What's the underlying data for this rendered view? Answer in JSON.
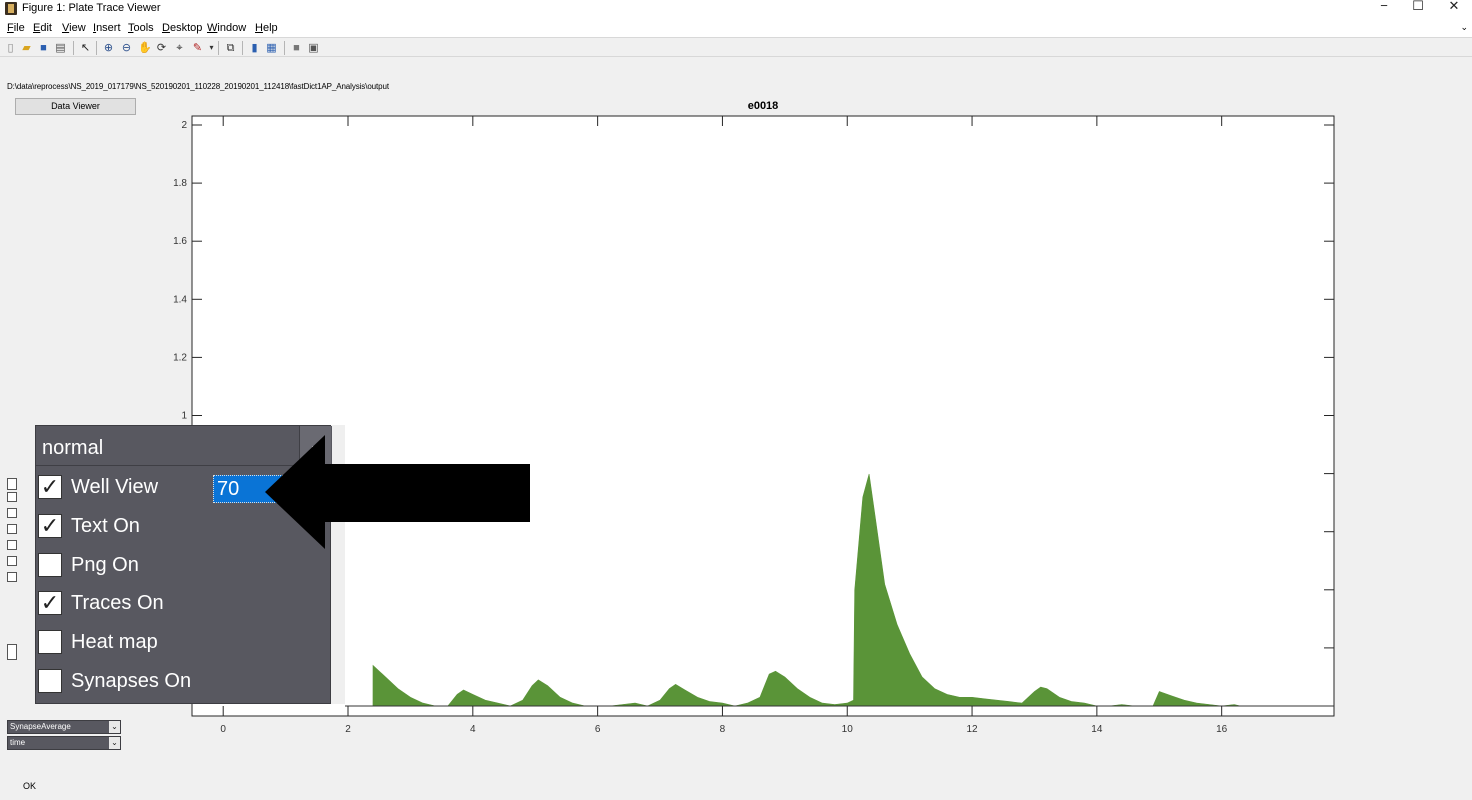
{
  "window": {
    "title": "Figure 1: Plate Trace Viewer",
    "minimize": "−",
    "maximize": "☐",
    "close": "✕"
  },
  "menu": {
    "items": [
      "File",
      "Edit",
      "View",
      "Insert",
      "Tools",
      "Desktop",
      "Window",
      "Help"
    ]
  },
  "toolbar": {
    "icons": [
      "new-figure-icon",
      "open-icon",
      "save-icon",
      "print-icon",
      "pointer-icon",
      "zoom-in-icon",
      "zoom-out-icon",
      "pan-icon",
      "rotate-icon",
      "data-cursor-icon",
      "brush-icon",
      "link-plot-icon",
      "colorbar-icon",
      "legend-icon",
      "hide-plot-tools-icon",
      "show-plot-tools-icon"
    ]
  },
  "path": "D:\\data\\reprocess\\NS_2019_017179\\NS_520190201_110228_20190201_112418\\fastDict1AP_Analysis\\output",
  "data_viewer_label": "Data Viewer",
  "panel": {
    "mode": "normal",
    "spacing_value": "70",
    "options": [
      {
        "label": "Well View",
        "checked": true
      },
      {
        "label": "Text On",
        "checked": true
      },
      {
        "label": "Png On",
        "checked": false
      },
      {
        "label": "Traces On",
        "checked": true
      },
      {
        "label": "Heat map",
        "checked": false
      },
      {
        "label": "Synapses On",
        "checked": false
      }
    ]
  },
  "bottom": {
    "metric_select": "SynapseAverage",
    "axis_select": "time",
    "ok_label": "OK"
  },
  "colors": {
    "trace_fill": "#5a9438",
    "panel_bg": "#585860",
    "input_highlight": "#0a74d6"
  },
  "chart_data": {
    "type": "area",
    "title": "e0018",
    "xlabel": "",
    "ylabel": "",
    "xlim": [
      -0.5,
      17.8
    ],
    "ylim": [
      0,
      2
    ],
    "xticks": [
      0,
      2,
      4,
      6,
      8,
      10,
      12,
      14,
      16
    ],
    "yticks": [
      1,
      1.2,
      1.4,
      1.6,
      1.8,
      2
    ],
    "series": [
      {
        "color": "#5a9438",
        "x": [
          2.4,
          2.6,
          2.8,
          3.0,
          3.2,
          3.4,
          3.6,
          3.75,
          3.85,
          4.0,
          4.2,
          4.4,
          4.6,
          4.8,
          4.95,
          5.05,
          5.2,
          5.4,
          5.6,
          5.8,
          6.0,
          6.2,
          6.4,
          6.6,
          6.8,
          7.0,
          7.15,
          7.25,
          7.4,
          7.6,
          7.8,
          8.0,
          8.2,
          8.4,
          8.6,
          8.75,
          8.85,
          9.0,
          9.2,
          9.4,
          9.6,
          9.8,
          10.0,
          10.1,
          10.12,
          10.25,
          10.35,
          10.45,
          10.6,
          10.8,
          11.0,
          11.2,
          11.4,
          11.6,
          11.8,
          12.0,
          12.2,
          12.4,
          12.6,
          12.8,
          13.0,
          13.1,
          13.2,
          13.4,
          13.6,
          13.8,
          14.0,
          14.2,
          14.4,
          14.6,
          14.9,
          15.0,
          15.2,
          15.4,
          15.6,
          15.8,
          16.0,
          16.2,
          16.3
        ],
        "y": [
          0.14,
          0.1,
          0.06,
          0.03,
          0.01,
          0.0,
          0.0,
          0.04,
          0.055,
          0.04,
          0.02,
          0.01,
          0.0,
          0.02,
          0.07,
          0.09,
          0.07,
          0.03,
          0.01,
          0.0,
          0.0,
          0.0,
          0.005,
          0.01,
          0.0,
          0.02,
          0.06,
          0.075,
          0.055,
          0.03,
          0.015,
          0.01,
          0.0,
          0.01,
          0.03,
          0.11,
          0.12,
          0.1,
          0.06,
          0.03,
          0.01,
          0.005,
          0.01,
          0.02,
          0.4,
          0.72,
          0.8,
          0.65,
          0.42,
          0.28,
          0.18,
          0.1,
          0.06,
          0.04,
          0.03,
          0.03,
          0.025,
          0.02,
          0.015,
          0.01,
          0.05,
          0.065,
          0.06,
          0.03,
          0.015,
          0.01,
          0.0,
          0.0,
          0.005,
          0.0,
          0.0,
          0.05,
          0.035,
          0.02,
          0.01,
          0.005,
          0.0,
          0.005,
          0.0
        ]
      }
    ]
  }
}
